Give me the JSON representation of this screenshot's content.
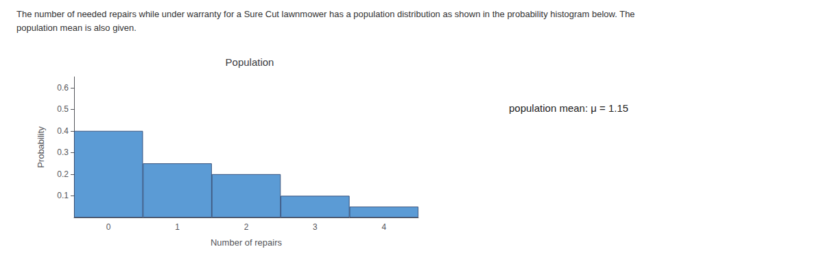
{
  "chart_data": {
    "type": "bar",
    "title": "Population",
    "subtitle": "The number of needed repairs while under warranty for a Sure Cut lawnmower has a population distribution as shown in the probability histogram below. The\npopulation mean is also given.",
    "xlabel": "Number of repairs",
    "ylabel": "Probability",
    "categories": [
      "0",
      "1",
      "2",
      "3",
      "4"
    ],
    "values": [
      0.4,
      0.25,
      0.2,
      0.1,
      0.05
    ],
    "color": "#5B9BD5",
    "ylim": [
      0,
      0.65
    ],
    "yticks": [
      0.1,
      0.2,
      0.3,
      0.4,
      0.5,
      0.6
    ],
    "grid": false,
    "annotations": [
      "population mean: μ = 1.15"
    ]
  }
}
